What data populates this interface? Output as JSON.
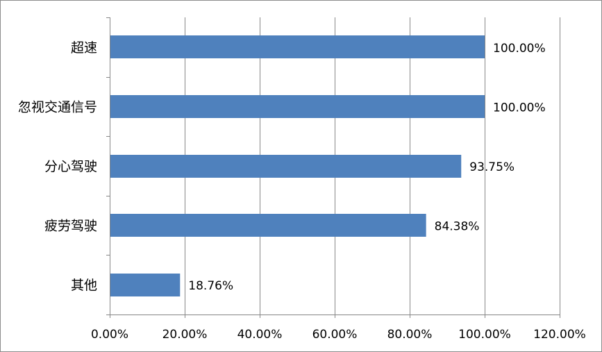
{
  "chart_data": {
    "type": "bar",
    "orientation": "horizontal",
    "title": "",
    "xlabel": "",
    "ylabel": "",
    "categories": [
      "超速",
      "忽视交通信号",
      "分心驾驶",
      "疲劳驾驶",
      "其他"
    ],
    "values": [
      100.0,
      100.0,
      93.75,
      84.38,
      18.76
    ],
    "data_labels": [
      "100.00%",
      "100.00%",
      "93.75%",
      "84.38%",
      "18.76%"
    ],
    "xlim": [
      0,
      120
    ],
    "x_ticks": [
      0,
      20,
      40,
      60,
      80,
      100,
      120
    ],
    "x_tick_labels": [
      "0.00%",
      "20.00%",
      "40.00%",
      "60.00%",
      "80.00%",
      "100.00%",
      "120.00%"
    ],
    "grid": "vertical",
    "legend": "none",
    "bar_color": "#4f81bd",
    "grid_color": "#868686"
  }
}
